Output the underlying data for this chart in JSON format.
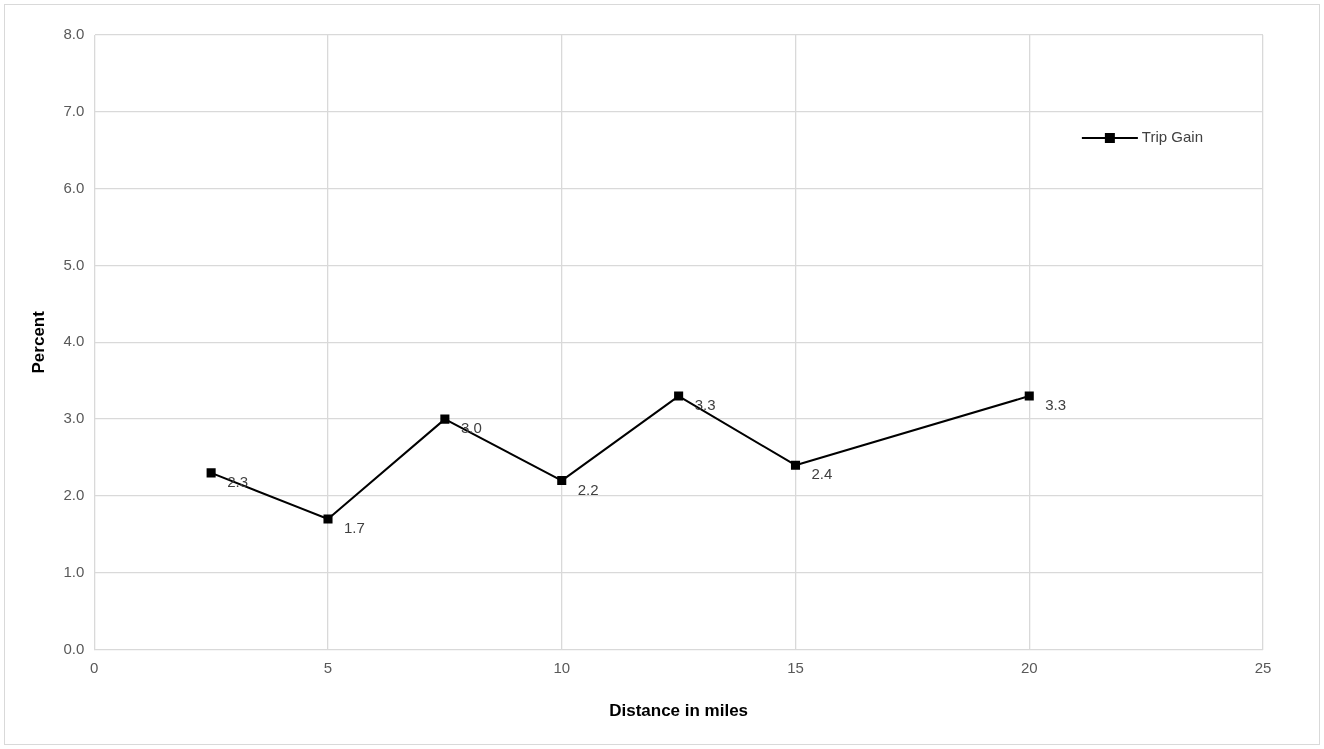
{
  "chart_data": {
    "type": "line",
    "xlabel": "Distance in miles",
    "ylabel": "Percent",
    "x": [
      2.5,
      5,
      7.5,
      10,
      12.5,
      15,
      20
    ],
    "series": [
      {
        "name": "Trip Gain",
        "color": "#000000",
        "values": [
          2.3,
          1.7,
          3.0,
          2.2,
          3.3,
          2.4,
          3.3
        ],
        "value_labels": [
          "2.3",
          "1.7",
          "3.0",
          "2.2",
          "3.3",
          "2.4",
          "3.3"
        ]
      }
    ],
    "xlim": [
      0,
      25
    ],
    "xticks": [
      0,
      5,
      10,
      15,
      20,
      25
    ],
    "ylim": [
      0,
      8
    ],
    "yticks": [
      {
        "value": 0,
        "label": "0.0"
      },
      {
        "value": 1,
        "label": "1.0"
      },
      {
        "value": 2,
        "label": "2.0"
      },
      {
        "value": 3,
        "label": "3.0"
      },
      {
        "value": 4,
        "label": "4.0"
      },
      {
        "value": 5,
        "label": "5.0"
      },
      {
        "value": 6,
        "label": "6.0"
      },
      {
        "value": 7,
        "label": "7.0"
      },
      {
        "value": 8,
        "label": "8.0"
      }
    ],
    "grid": true,
    "legend": "top right",
    "marker": "square",
    "line_style": "solid"
  }
}
